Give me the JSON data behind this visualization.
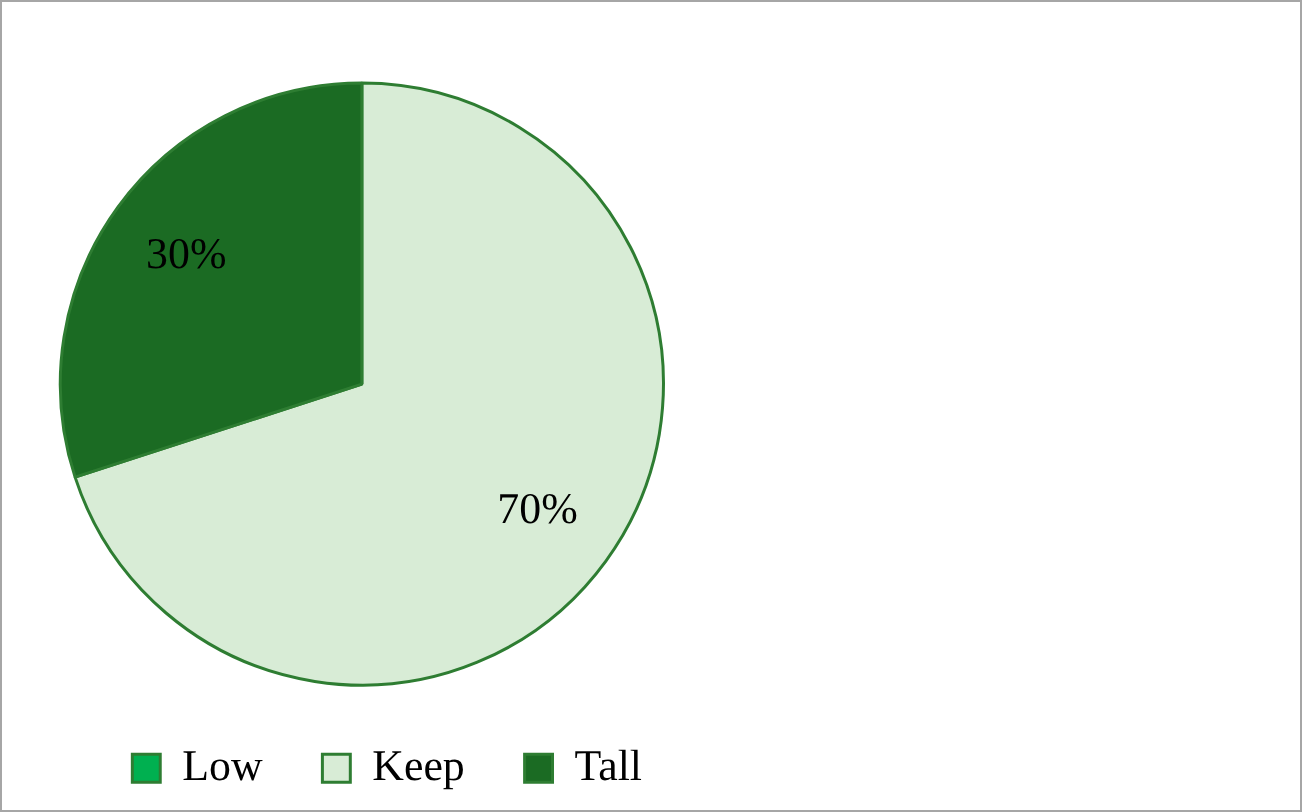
{
  "chart_data": {
    "type": "pie",
    "categories": [
      "Low",
      "Keep",
      "Tall"
    ],
    "values": [
      0,
      70,
      30
    ],
    "colors": [
      "#00b050",
      "#d8ecd6",
      "#1b6b23"
    ],
    "value_labels": [
      null,
      "70%",
      "30%"
    ],
    "legend": "bottom right"
  }
}
